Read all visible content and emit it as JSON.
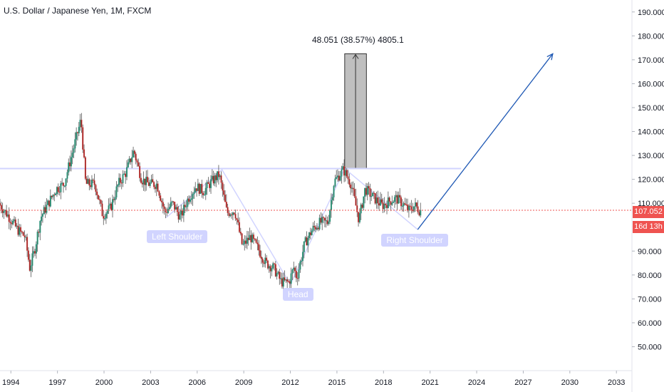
{
  "header": {
    "title": "U.S. Dollar / Japanese Yen, 1M, FXCM"
  },
  "measure_label": "48.051 (38.57%) 4805.1",
  "price_labels": {
    "last_price": "107.052",
    "countdown": "16d 13h"
  },
  "colors": {
    "up": "#26a69a",
    "up_dark": "#2e7d5b",
    "down": "#ef5350",
    "down_dark": "#8b1a1a",
    "wick": "#555555",
    "neckline": "#d1d4ff",
    "arrow": "#1e58b4",
    "price_line": "#ef5350",
    "measure_box": "#a9a9a9",
    "annotation_bg": "#d1d4ff"
  },
  "chart_data": {
    "type": "candlestick",
    "title": "U.S. Dollar / Japanese Yen, 1M, FXCM",
    "x_ticks": [
      "1994",
      "1997",
      "2000",
      "2003",
      "2006",
      "2009",
      "2012",
      "2015",
      "2018",
      "2021",
      "2024",
      "2027",
      "2030",
      "2033"
    ],
    "y_ticks": [
      "50.000",
      "60.000",
      "70.000",
      "80.000",
      "90.000",
      "110.000",
      "120.000",
      "130.000",
      "140.000",
      "150.000",
      "160.000",
      "170.000",
      "180.000",
      "190.000"
    ],
    "xlim": [
      1993.3,
      2034.0
    ],
    "ylim": [
      40,
      195
    ],
    "last_price": 107.052,
    "price_path": [
      [
        1993.3,
        110
      ],
      [
        1994.0,
        104
      ],
      [
        1994.5,
        99
      ],
      [
        1995.0,
        96
      ],
      [
        1995.3,
        83
      ],
      [
        1995.6,
        90
      ],
      [
        1996.0,
        104
      ],
      [
        1996.5,
        110
      ],
      [
        1997.0,
        116
      ],
      [
        1997.5,
        118
      ],
      [
        1998.0,
        130
      ],
      [
        1998.6,
        145
      ],
      [
        1998.9,
        118
      ],
      [
        1999.5,
        118
      ],
      [
        2000.0,
        105
      ],
      [
        2000.5,
        108
      ],
      [
        2001.0,
        118
      ],
      [
        2001.5,
        123
      ],
      [
        2002.0,
        132
      ],
      [
        2002.5,
        120
      ],
      [
        2003.0,
        118
      ],
      [
        2003.5,
        118
      ],
      [
        2004.0,
        106
      ],
      [
        2004.5,
        110
      ],
      [
        2005.0,
        104
      ],
      [
        2005.5,
        112
      ],
      [
        2006.0,
        117
      ],
      [
        2006.5,
        115
      ],
      [
        2007.0,
        119
      ],
      [
        2007.5,
        122
      ],
      [
        2008.0,
        106
      ],
      [
        2008.5,
        107
      ],
      [
        2009.0,
        92
      ],
      [
        2009.5,
        96
      ],
      [
        2010.0,
        91
      ],
      [
        2010.5,
        85
      ],
      [
        2011.0,
        83
      ],
      [
        2011.5,
        77
      ],
      [
        2012.0,
        77
      ],
      [
        2012.3,
        83
      ],
      [
        2012.5,
        79
      ],
      [
        2013.0,
        93
      ],
      [
        2013.5,
        99
      ],
      [
        2014.0,
        102
      ],
      [
        2014.5,
        102
      ],
      [
        2014.9,
        119
      ],
      [
        2015.5,
        124
      ],
      [
        2016.0,
        118
      ],
      [
        2016.5,
        103
      ],
      [
        2016.9,
        116
      ],
      [
        2017.5,
        112
      ],
      [
        2018.0,
        109
      ],
      [
        2018.5,
        111
      ],
      [
        2018.9,
        112
      ],
      [
        2019.3,
        110
      ],
      [
        2019.7,
        107
      ],
      [
        2020.1,
        109
      ],
      [
        2020.4,
        107
      ]
    ],
    "pattern": {
      "neckline": {
        "y": 124.5,
        "x": [
          1993.3,
          2023.0
        ]
      },
      "shape_points": [
        [
          2004.0,
          104
        ],
        [
          2007.6,
          124
        ],
        [
          2012.0,
          76
        ],
        [
          2015.5,
          124.5
        ],
        [
          2020.2,
          99
        ]
      ],
      "projection_arrow": {
        "from": [
          2020.2,
          99
        ],
        "to": [
          2028.9,
          172.5
        ]
      },
      "measure_box": {
        "x": [
          2015.5,
          2016.9
        ],
        "y": [
          124.5,
          172.5
        ]
      },
      "labels": [
        {
          "text": "Left Shoulder",
          "x": 2004.7,
          "y": 96
        },
        {
          "text": "Head",
          "x": 2012.5,
          "y": 72
        },
        {
          "text": "Right Shoulder",
          "x": 2020.0,
          "y": 94.5
        }
      ]
    }
  }
}
